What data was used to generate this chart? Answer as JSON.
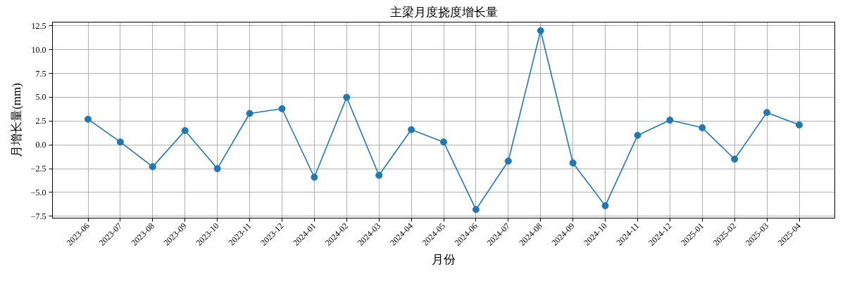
{
  "chart_data": {
    "type": "line",
    "title": "主梁月度挠度增长量",
    "xlabel": "月份",
    "ylabel": "月增长量(mm)",
    "categories": [
      "2023-06",
      "2023-07",
      "2023-08",
      "2023-09",
      "2023-10",
      "2023-11",
      "2023-12",
      "2024-01",
      "2024-02",
      "2024-03",
      "2024-04",
      "2024-05",
      "2024-06",
      "2024-07",
      "2024-08",
      "2024-09",
      "2024-10",
      "2024-11",
      "2024-12",
      "2025-01",
      "2025-02",
      "2025-03",
      "2025-04"
    ],
    "series": [
      {
        "color": "#1f77b4",
        "values": [
          2.7,
          0.3,
          -2.3,
          1.5,
          -2.5,
          3.3,
          3.8,
          -3.4,
          5.0,
          -3.2,
          1.6,
          0.3,
          -6.8,
          -1.7,
          12.0,
          -1.9,
          -6.4,
          1.0,
          2.6,
          1.8,
          -1.5,
          3.4,
          2.1
        ]
      }
    ],
    "ylim": [
      -7.7,
      12.9
    ],
    "yticks": [
      {
        "value": -7.5,
        "label": "−7.5"
      },
      {
        "value": -5,
        "label": "−5.0"
      },
      {
        "value": -2.5,
        "label": "−2.5"
      },
      {
        "value": 0,
        "label": "0.0"
      },
      {
        "value": 2.5,
        "label": "2.5"
      },
      {
        "value": 5,
        "label": "5.0"
      },
      {
        "value": 7.5,
        "label": "7.5"
      },
      {
        "value": 10,
        "label": "10.0"
      },
      {
        "value": 12.5,
        "label": "12.5"
      }
    ],
    "grid": true,
    "marker": "circle",
    "line_style": "solid"
  }
}
